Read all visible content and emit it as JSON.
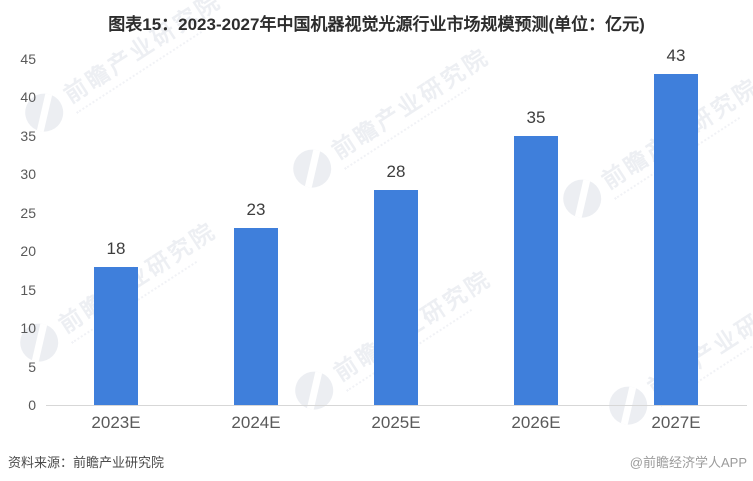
{
  "title": "图表15：2023-2027年中国机器视觉光源行业市场规模预测(单位：亿元)",
  "chart_data": {
    "type": "bar",
    "title": "图表15：2023-2027年中国机器视觉光源行业市场规模预测(单位：亿元)",
    "categories": [
      "2023E",
      "2024E",
      "2025E",
      "2026E",
      "2027E"
    ],
    "values": [
      18,
      23,
      28,
      35,
      43
    ],
    "xlabel": "",
    "ylabel": "",
    "unit": "亿元",
    "ylim": [
      0,
      45
    ],
    "ytick_step": 5,
    "yticks": [
      0,
      5,
      10,
      15,
      20,
      25,
      30,
      35,
      40,
      45
    ],
    "grid": false,
    "legend": null,
    "value_labels_shown": true,
    "bar_color": "#3F7FDB"
  },
  "footer": {
    "source": "资料来源：前瞻产业研究院",
    "credit": "@前瞻经济学人APP"
  },
  "watermark": {
    "text": "前瞻产业研究院",
    "logo": "qianzhan-logo-icon",
    "color": "#dfe3ea"
  },
  "colors": {
    "bar": "#3F7FDB",
    "title_text": "#2d2d2d",
    "axis_text": "#595959",
    "axis_line": "#d7d7d7",
    "background": "#ffffff"
  }
}
